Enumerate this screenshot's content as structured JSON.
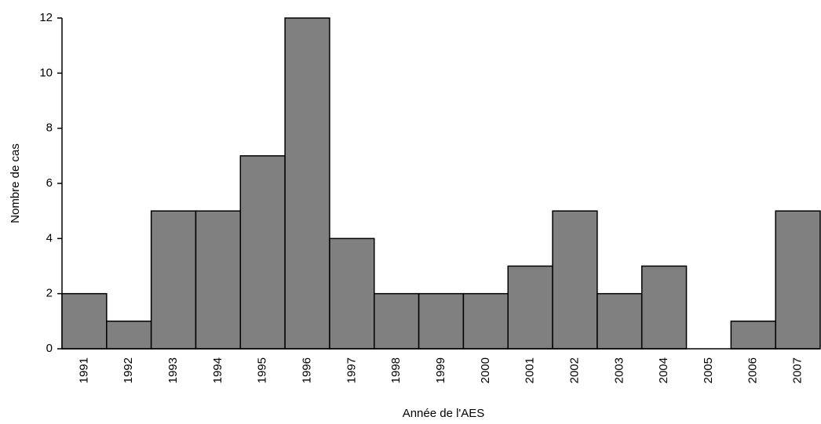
{
  "chart_data": {
    "type": "bar",
    "x_label": "Année de l'AES",
    "y_label": "Nombre de cas",
    "categories": [
      "1991",
      "1992",
      "1993",
      "1994",
      "1995",
      "1996",
      "1997",
      "1998",
      "1999",
      "2000",
      "2001",
      "2002",
      "2003",
      "2004",
      "2005",
      "2006",
      "2007"
    ],
    "values": [
      2,
      1,
      5,
      5,
      7,
      12,
      4,
      2,
      2,
      2,
      3,
      5,
      2,
      3,
      0,
      1,
      5
    ],
    "color": "#808080",
    "ylim": [
      0,
      12
    ],
    "yticks": [
      0,
      2,
      4,
      6,
      8,
      10,
      12
    ],
    "grid": false
  }
}
